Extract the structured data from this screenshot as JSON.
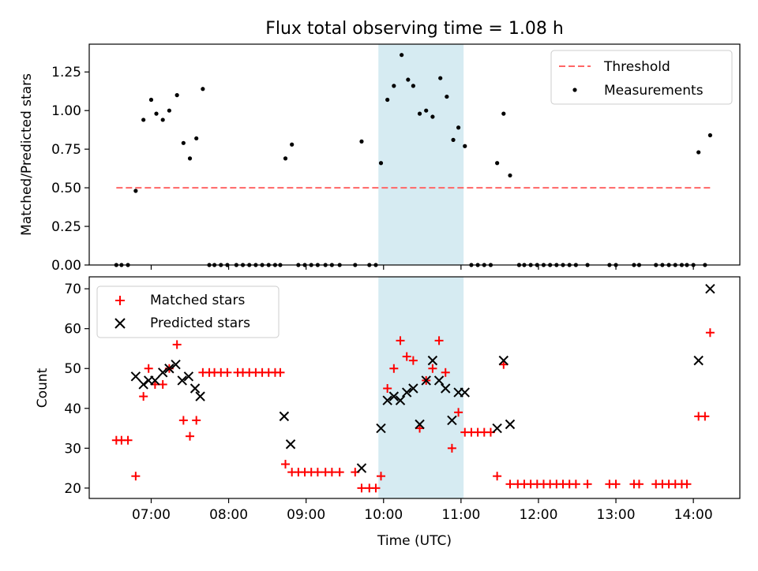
{
  "figure": {
    "title": "Flux total observing time = 1.08 h",
    "xlabel": "Time (UTC)",
    "xticks": [
      "07:00",
      "08:00",
      "09:00",
      "10:00",
      "11:00",
      "12:00",
      "13:00",
      "14:00"
    ]
  },
  "colors": {
    "threshold": "#ff6666",
    "measurements": "#000000",
    "matched": "#ff0000",
    "predicted": "#000000",
    "highlight": "#add8e6"
  },
  "chart_data": [
    {
      "type": "scatter",
      "ylabel": "Matched/Predicted stars",
      "ylim": [
        0,
        1.43
      ],
      "yticks": [
        "0.00",
        "0.25",
        "0.50",
        "0.75",
        "1.00",
        "1.25"
      ],
      "xlim": [
        "06:12",
        "14:36"
      ],
      "highlight_span": [
        "09:56",
        "11:02"
      ],
      "legend": {
        "placement": "top-right",
        "entries": [
          "Threshold",
          "Measurements"
        ]
      },
      "threshold": {
        "name": "Threshold",
        "y": 0.5,
        "x": [
          "06:33",
          "14:13"
        ]
      },
      "series": [
        {
          "name": "Measurements",
          "points": [
            [
              "06:33",
              0.0
            ],
            [
              "06:37",
              0.0
            ],
            [
              "06:42",
              0.0
            ],
            [
              "06:48",
              0.48
            ],
            [
              "06:54",
              0.94
            ],
            [
              "07:00",
              1.07
            ],
            [
              "07:04",
              0.98
            ],
            [
              "07:09",
              0.94
            ],
            [
              "07:14",
              1.0
            ],
            [
              "07:20",
              1.1
            ],
            [
              "07:25",
              0.79
            ],
            [
              "07:30",
              0.69
            ],
            [
              "07:35",
              0.82
            ],
            [
              "07:40",
              1.14
            ],
            [
              "07:45",
              0.0
            ],
            [
              "07:49",
              0.0
            ],
            [
              "07:54",
              0.0
            ],
            [
              "07:59",
              0.0
            ],
            [
              "08:06",
              0.0
            ],
            [
              "08:11",
              0.0
            ],
            [
              "08:16",
              0.0
            ],
            [
              "08:21",
              0.0
            ],
            [
              "08:26",
              0.0
            ],
            [
              "08:31",
              0.0
            ],
            [
              "08:36",
              0.0
            ],
            [
              "08:40",
              0.0
            ],
            [
              "08:44",
              0.69
            ],
            [
              "08:49",
              0.78
            ],
            [
              "08:54",
              0.0
            ],
            [
              "08:59",
              0.0
            ],
            [
              "09:04",
              0.0
            ],
            [
              "09:09",
              0.0
            ],
            [
              "09:15",
              0.0
            ],
            [
              "09:20",
              0.0
            ],
            [
              "09:26",
              0.0
            ],
            [
              "09:38",
              0.0
            ],
            [
              "09:43",
              0.8
            ],
            [
              "09:49",
              0.0
            ],
            [
              "09:54",
              0.0
            ],
            [
              "09:58",
              0.66
            ],
            [
              "10:03",
              1.07
            ],
            [
              "10:08",
              1.16
            ],
            [
              "10:14",
              1.36
            ],
            [
              "10:19",
              1.2
            ],
            [
              "10:23",
              1.16
            ],
            [
              "10:28",
              0.98
            ],
            [
              "10:33",
              1.0
            ],
            [
              "10:38",
              0.96
            ],
            [
              "10:44",
              1.21
            ],
            [
              "10:49",
              1.09
            ],
            [
              "10:54",
              0.81
            ],
            [
              "10:58",
              0.89
            ],
            [
              "11:03",
              0.77
            ],
            [
              "11:08",
              0.0
            ],
            [
              "11:13",
              0.0
            ],
            [
              "11:18",
              0.0
            ],
            [
              "11:23",
              0.0
            ],
            [
              "11:28",
              0.66
            ],
            [
              "11:33",
              0.98
            ],
            [
              "11:38",
              0.58
            ],
            [
              "11:45",
              0.0
            ],
            [
              "11:49",
              0.0
            ],
            [
              "11:54",
              0.0
            ],
            [
              "11:59",
              0.0
            ],
            [
              "12:04",
              0.0
            ],
            [
              "12:09",
              0.0
            ],
            [
              "12:14",
              0.0
            ],
            [
              "12:19",
              0.0
            ],
            [
              "12:24",
              0.0
            ],
            [
              "12:29",
              0.0
            ],
            [
              "12:38",
              0.0
            ],
            [
              "12:55",
              0.0
            ],
            [
              "13:00",
              0.0
            ],
            [
              "13:14",
              0.0
            ],
            [
              "13:18",
              0.0
            ],
            [
              "13:31",
              0.0
            ],
            [
              "13:36",
              0.0
            ],
            [
              "13:41",
              0.0
            ],
            [
              "13:46",
              0.0
            ],
            [
              "13:51",
              0.0
            ],
            [
              "13:55",
              0.0
            ],
            [
              "14:00",
              0.0
            ],
            [
              "14:04",
              0.73
            ],
            [
              "14:09",
              0.0
            ],
            [
              "14:13",
              0.84
            ]
          ]
        }
      ]
    },
    {
      "type": "scatter",
      "ylabel": "Count",
      "ylim": [
        17.4,
        73
      ],
      "yticks": [
        "20",
        "30",
        "40",
        "50",
        "60",
        "70"
      ],
      "xlim": [
        "06:12",
        "14:36"
      ],
      "highlight_span": [
        "09:56",
        "11:02"
      ],
      "legend": {
        "placement": "top-left",
        "entries": [
          "Matched stars",
          "Predicted stars"
        ]
      },
      "series": [
        {
          "name": "Matched stars",
          "marker": "+",
          "points": [
            [
              "06:33",
              32
            ],
            [
              "06:37",
              32
            ],
            [
              "06:42",
              32
            ],
            [
              "06:48",
              23
            ],
            [
              "06:54",
              43
            ],
            [
              "06:58",
              50
            ],
            [
              "07:03",
              46
            ],
            [
              "07:09",
              46
            ],
            [
              "07:14",
              50
            ],
            [
              "07:20",
              56
            ],
            [
              "07:25",
              37
            ],
            [
              "07:30",
              33
            ],
            [
              "07:35",
              37
            ],
            [
              "07:40",
              49
            ],
            [
              "07:45",
              49
            ],
            [
              "07:49",
              49
            ],
            [
              "07:54",
              49
            ],
            [
              "07:59",
              49
            ],
            [
              "08:07",
              49
            ],
            [
              "08:11",
              49
            ],
            [
              "08:16",
              49
            ],
            [
              "08:21",
              49
            ],
            [
              "08:26",
              49
            ],
            [
              "08:31",
              49
            ],
            [
              "08:36",
              49
            ],
            [
              "08:40",
              49
            ],
            [
              "08:44",
              26
            ],
            [
              "08:49",
              24
            ],
            [
              "08:54",
              24
            ],
            [
              "08:59",
              24
            ],
            [
              "09:04",
              24
            ],
            [
              "09:09",
              24
            ],
            [
              "09:15",
              24
            ],
            [
              "09:20",
              24
            ],
            [
              "09:26",
              24
            ],
            [
              "09:38",
              24
            ],
            [
              "09:43",
              20
            ],
            [
              "09:49",
              20
            ],
            [
              "09:54",
              20
            ],
            [
              "09:58",
              23
            ],
            [
              "10:03",
              45
            ],
            [
              "10:08",
              50
            ],
            [
              "10:13",
              57
            ],
            [
              "10:18",
              53
            ],
            [
              "10:23",
              52
            ],
            [
              "10:28",
              35
            ],
            [
              "10:33",
              47
            ],
            [
              "10:38",
              50
            ],
            [
              "10:43",
              57
            ],
            [
              "10:48",
              49
            ],
            [
              "10:53",
              30
            ],
            [
              "10:58",
              39
            ],
            [
              "11:03",
              34
            ],
            [
              "11:08",
              34
            ],
            [
              "11:13",
              34
            ],
            [
              "11:18",
              34
            ],
            [
              "11:23",
              34
            ],
            [
              "11:28",
              23
            ],
            [
              "11:33",
              51
            ],
            [
              "11:38",
              21
            ],
            [
              "11:44",
              21
            ],
            [
              "11:49",
              21
            ],
            [
              "11:54",
              21
            ],
            [
              "11:59",
              21
            ],
            [
              "12:04",
              21
            ],
            [
              "12:09",
              21
            ],
            [
              "12:14",
              21
            ],
            [
              "12:19",
              21
            ],
            [
              "12:24",
              21
            ],
            [
              "12:29",
              21
            ],
            [
              "12:38",
              21
            ],
            [
              "12:55",
              21
            ],
            [
              "13:00",
              21
            ],
            [
              "13:14",
              21
            ],
            [
              "13:18",
              21
            ],
            [
              "13:31",
              21
            ],
            [
              "13:36",
              21
            ],
            [
              "13:41",
              21
            ],
            [
              "13:46",
              21
            ],
            [
              "13:51",
              21
            ],
            [
              "13:55",
              21
            ],
            [
              "14:04",
              38
            ],
            [
              "14:09",
              38
            ],
            [
              "14:13",
              59
            ]
          ]
        },
        {
          "name": "Predicted stars",
          "marker": "x",
          "points": [
            [
              "06:48",
              48
            ],
            [
              "06:54",
              46
            ],
            [
              "06:58",
              47
            ],
            [
              "07:03",
              47
            ],
            [
              "07:09",
              49
            ],
            [
              "07:14",
              50
            ],
            [
              "07:19",
              51
            ],
            [
              "07:24",
              47
            ],
            [
              "07:29",
              48
            ],
            [
              "07:34",
              45
            ],
            [
              "07:38",
              43
            ],
            [
              "08:43",
              38
            ],
            [
              "08:48",
              31
            ],
            [
              "09:43",
              25
            ],
            [
              "09:58",
              35
            ],
            [
              "10:03",
              42
            ],
            [
              "10:08",
              43
            ],
            [
              "10:13",
              42
            ],
            [
              "10:18",
              44
            ],
            [
              "10:23",
              45
            ],
            [
              "10:28",
              36
            ],
            [
              "10:33",
              47
            ],
            [
              "10:38",
              52
            ],
            [
              "10:43",
              47
            ],
            [
              "10:48",
              45
            ],
            [
              "10:53",
              37
            ],
            [
              "10:58",
              44
            ],
            [
              "11:03",
              44
            ],
            [
              "11:28",
              35
            ],
            [
              "11:33",
              52
            ],
            [
              "11:38",
              36
            ],
            [
              "14:04",
              52
            ],
            [
              "14:13",
              70
            ]
          ]
        }
      ]
    }
  ]
}
